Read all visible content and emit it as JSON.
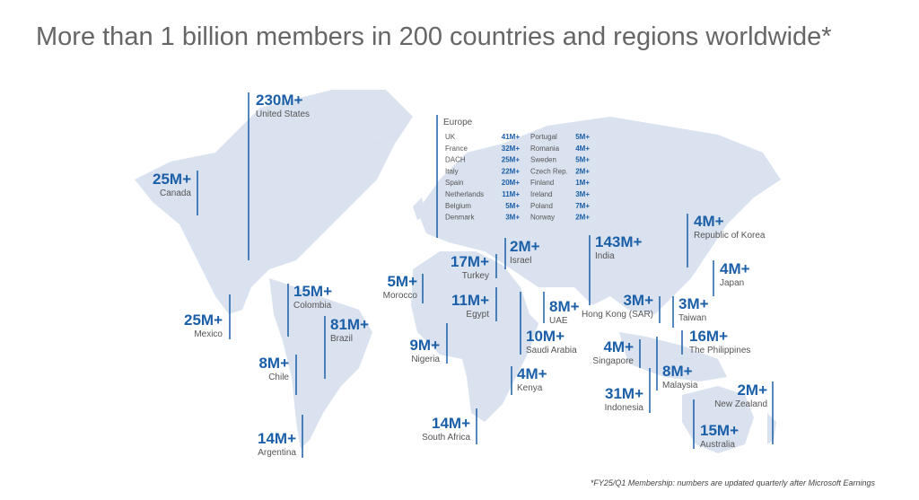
{
  "title": "More than 1 billion members in 200 countries and regions worldwide*",
  "regions": [
    {
      "value": "230M+",
      "name": "United States"
    },
    {
      "value": "25M+",
      "name": "Canada"
    },
    {
      "value": "25M+",
      "name": "Mexico"
    },
    {
      "value": "15M+",
      "name": "Colombia"
    },
    {
      "value": "81M+",
      "name": "Brazil"
    },
    {
      "value": "8M+",
      "name": "Chile"
    },
    {
      "value": "14M+",
      "name": "Argentina"
    },
    {
      "value": "5M+",
      "name": "Morocco"
    },
    {
      "value": "9M+",
      "name": "Nigeria"
    },
    {
      "value": "14M+",
      "name": "South Africa"
    },
    {
      "value": "17M+",
      "name": "Turkey"
    },
    {
      "value": "11M+",
      "name": "Egypt"
    },
    {
      "value": "2M+",
      "name": "Israel"
    },
    {
      "value": "10M+",
      "name": "Saudi Arabia"
    },
    {
      "value": "8M+",
      "name": "UAE"
    },
    {
      "value": "4M+",
      "name": "Kenya"
    },
    {
      "value": "143M+",
      "name": "India"
    },
    {
      "value": "4M+",
      "name": "Republic of Korea"
    },
    {
      "value": "4M+",
      "name": "Japan"
    },
    {
      "value": "3M+",
      "name": "Hong Kong (SAR)"
    },
    {
      "value": "3M+",
      "name": "Taiwan"
    },
    {
      "value": "16M+",
      "name": "The Philippines"
    },
    {
      "value": "4M+",
      "name": "Singapore"
    },
    {
      "value": "8M+",
      "name": "Malaysia"
    },
    {
      "value": "31M+",
      "name": "Indonesia"
    },
    {
      "value": "2M+",
      "name": "New Zealand"
    },
    {
      "value": "15M+",
      "name": "Australia"
    }
  ],
  "europe": {
    "title": "Europe",
    "rows": [
      {
        "name": "UK",
        "value": "41M+"
      },
      {
        "name": "France",
        "value": "32M+"
      },
      {
        "name": "DACH",
        "value": "25M+"
      },
      {
        "name": "Italy",
        "value": "22M+"
      },
      {
        "name": "Spain",
        "value": "20M+"
      },
      {
        "name": "Netherlands",
        "value": "11M+"
      },
      {
        "name": "Belgium",
        "value": "5M+"
      },
      {
        "name": "Denmark",
        "value": "3M+"
      },
      {
        "name": "Portugal",
        "value": "5M+"
      },
      {
        "name": "Romania",
        "value": "4M+"
      },
      {
        "name": "Sweden",
        "value": "5M+"
      },
      {
        "name": "Czech Rep.",
        "value": "2M+"
      },
      {
        "name": "Finland",
        "value": "1M+"
      },
      {
        "name": "Ireland",
        "value": "3M+"
      },
      {
        "name": "Poland",
        "value": "7M+"
      },
      {
        "name": "Norway",
        "value": "2M+"
      }
    ]
  },
  "footnote": "*FY25/Q1 Membership: numbers are updated quarterly after Microsoft Earnings"
}
